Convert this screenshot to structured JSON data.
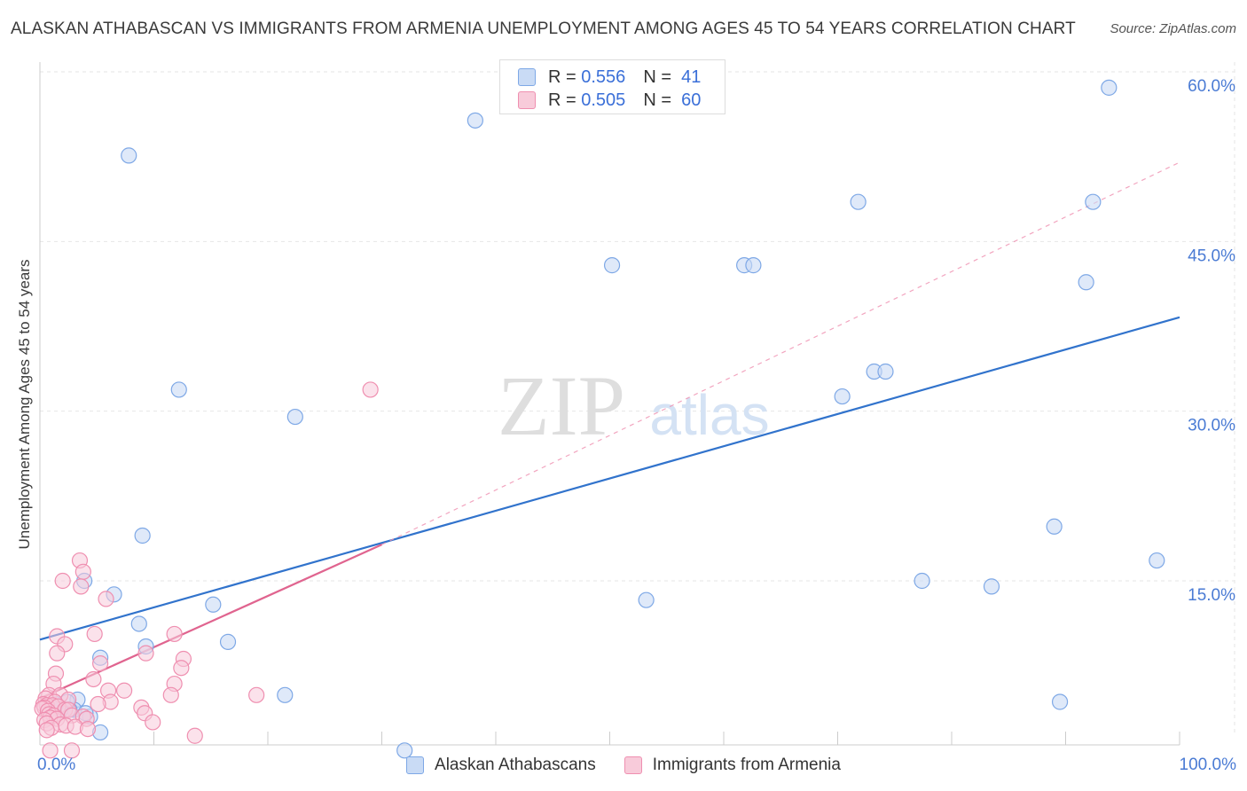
{
  "title": "ALASKAN ATHABASCAN VS IMMIGRANTS FROM ARMENIA UNEMPLOYMENT AMONG AGES 45 TO 54 YEARS CORRELATION CHART",
  "source": "Source: ZipAtlas.com",
  "watermark": {
    "zip": "ZIP",
    "atlas": "atlas"
  },
  "legend": {
    "rows": [
      {
        "r_label": "R =",
        "r_value": "0.556",
        "n_label": "N =",
        "n_value": "41"
      },
      {
        "r_label": "R =",
        "r_value": "0.505",
        "n_label": "N =",
        "n_value": "60"
      }
    ]
  },
  "colors": {
    "blue": "#7ea8e6",
    "blue_fill": "#c9dbf5",
    "blue_line": "#3173cc",
    "pink": "#ef8fb0",
    "pink_fill": "#f8cbda",
    "pink_line": "#e0648f",
    "tick_text": "#4a7bd4",
    "grid": "#e6e6e6"
  },
  "chart_data": {
    "type": "scatter",
    "title": "ALASKAN ATHABASCAN VS IMMIGRANTS FROM ARMENIA UNEMPLOYMENT AMONG AGES 45 TO 54 YEARS CORRELATION CHART",
    "xlabel": "",
    "ylabel": "Unemployment Among Ages 45 to 54 years",
    "xlim": [
      0,
      100
    ],
    "ylim": [
      0,
      62
    ],
    "x_tick_labels": [
      "0.0%",
      "100.0%"
    ],
    "y_ticks": [
      15,
      30,
      45,
      60
    ],
    "y_tick_labels": [
      "15.0%",
      "30.0%",
      "45.0%",
      "60.0%"
    ],
    "series": [
      {
        "name": "Alaskan Athabascans",
        "R": 0.556,
        "N": 41,
        "trend": {
          "x": [
            0,
            100
          ],
          "y": [
            9.8,
            38.3
          ]
        },
        "points": [
          [
            7.8,
            52.6
          ],
          [
            38.2,
            55.7
          ],
          [
            93.8,
            58.6
          ],
          [
            71.8,
            48.5
          ],
          [
            92.4,
            48.5
          ],
          [
            50.2,
            42.9
          ],
          [
            61.8,
            42.9
          ],
          [
            62.6,
            42.9
          ],
          [
            91.8,
            41.4
          ],
          [
            73.2,
            33.5
          ],
          [
            74.2,
            33.5
          ],
          [
            70.4,
            31.3
          ],
          [
            12.2,
            31.9
          ],
          [
            22.4,
            29.5
          ],
          [
            89.0,
            19.8
          ],
          [
            9.0,
            19.0
          ],
          [
            98.0,
            16.8
          ],
          [
            3.9,
            15.0
          ],
          [
            77.4,
            15.0
          ],
          [
            83.5,
            14.5
          ],
          [
            6.5,
            13.8
          ],
          [
            53.2,
            13.3
          ],
          [
            15.2,
            12.9
          ],
          [
            8.7,
            11.2
          ],
          [
            16.5,
            9.6
          ],
          [
            9.3,
            9.2
          ],
          [
            5.3,
            8.2
          ],
          [
            21.5,
            4.9
          ],
          [
            3.3,
            4.5
          ],
          [
            3.0,
            3.6
          ],
          [
            2.6,
            3.6
          ],
          [
            2.4,
            4.3
          ],
          [
            1.6,
            3.9
          ],
          [
            1.8,
            3.6
          ],
          [
            4.4,
            3.0
          ],
          [
            4.0,
            3.3
          ],
          [
            0.9,
            3.9
          ],
          [
            1.4,
            4.1
          ],
          [
            89.5,
            4.3
          ],
          [
            32.0,
            0.0
          ],
          [
            5.3,
            1.6
          ]
        ]
      },
      {
        "name": "Immigrants from Armenia",
        "R": 0.505,
        "N": 60,
        "trend": {
          "x": [
            0,
            30
          ],
          "y": [
            4.6,
            18.2
          ]
        },
        "trend_ext": {
          "x": [
            30,
            100
          ],
          "y": [
            18.2,
            52.0
          ]
        },
        "points": [
          [
            29.0,
            31.9
          ],
          [
            3.5,
            16.8
          ],
          [
            3.8,
            15.8
          ],
          [
            2.0,
            15.0
          ],
          [
            3.6,
            14.5
          ],
          [
            5.8,
            13.4
          ],
          [
            1.5,
            10.1
          ],
          [
            4.8,
            10.3
          ],
          [
            11.8,
            10.3
          ],
          [
            2.2,
            9.4
          ],
          [
            1.5,
            8.6
          ],
          [
            9.3,
            8.6
          ],
          [
            12.6,
            8.1
          ],
          [
            5.3,
            7.7
          ],
          [
            12.4,
            7.3
          ],
          [
            1.4,
            6.8
          ],
          [
            4.7,
            6.3
          ],
          [
            1.2,
            5.9
          ],
          [
            11.8,
            5.9
          ],
          [
            6.0,
            5.3
          ],
          [
            7.4,
            5.3
          ],
          [
            19.0,
            4.9
          ],
          [
            0.8,
            4.9
          ],
          [
            11.5,
            4.9
          ],
          [
            1.8,
            4.9
          ],
          [
            6.2,
            4.3
          ],
          [
            2.5,
            4.5
          ],
          [
            0.5,
            4.6
          ],
          [
            1.3,
            4.3
          ],
          [
            0.3,
            4.1
          ],
          [
            5.1,
            4.1
          ],
          [
            0.6,
            4.0
          ],
          [
            1.1,
            4.0
          ],
          [
            1.6,
            3.9
          ],
          [
            8.9,
            3.8
          ],
          [
            0.4,
            3.8
          ],
          [
            0.2,
            3.7
          ],
          [
            2.2,
            3.6
          ],
          [
            2.5,
            3.6
          ],
          [
            0.7,
            3.5
          ],
          [
            9.2,
            3.3
          ],
          [
            0.8,
            3.2
          ],
          [
            1.2,
            3.1
          ],
          [
            2.8,
            3.1
          ],
          [
            3.8,
            3.0
          ],
          [
            0.9,
            2.9
          ],
          [
            1.5,
            2.8
          ],
          [
            4.1,
            2.8
          ],
          [
            0.4,
            2.7
          ],
          [
            9.9,
            2.5
          ],
          [
            0.6,
            2.4
          ],
          [
            1.8,
            2.3
          ],
          [
            2.3,
            2.2
          ],
          [
            3.1,
            2.1
          ],
          [
            1.0,
            2.0
          ],
          [
            4.2,
            1.9
          ],
          [
            0.6,
            1.8
          ],
          [
            13.6,
            1.3
          ],
          [
            2.8,
            0.0
          ],
          [
            0.9,
            0.0
          ]
        ]
      }
    ]
  },
  "axis": {
    "x_left": "0.0%",
    "x_right": "100.0%"
  },
  "bottom_legend": [
    "Alaskan Athabascans",
    "Immigrants from Armenia"
  ]
}
